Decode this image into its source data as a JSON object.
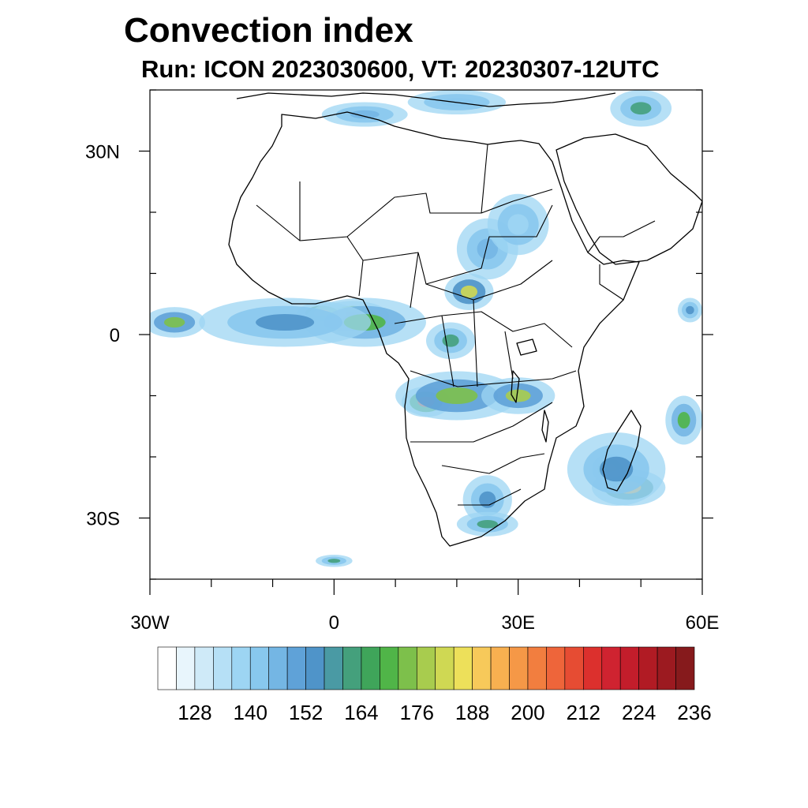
{
  "title": "Convection index",
  "subtitle": "Run: ICON 2023030600,  VT: 20230307-12UTC",
  "map": {
    "lon_range": [
      -30,
      60
    ],
    "lat_range": [
      -40,
      40
    ],
    "lat_ticks": [
      {
        "value": 30,
        "label": "30N"
      },
      {
        "value": 0,
        "label": "0"
      },
      {
        "value": -30,
        "label": "30S"
      }
    ],
    "lon_ticks": [
      {
        "value": -30,
        "label": "30W"
      },
      {
        "value": 0,
        "label": "0"
      },
      {
        "value": 30,
        "label": "30E"
      },
      {
        "value": 60,
        "label": "60E"
      }
    ],
    "minor_lat_ticks": [
      40,
      20,
      10,
      -10,
      -20,
      -40
    ],
    "minor_lon_ticks": [
      -20,
      -10,
      10,
      20,
      40,
      50
    ]
  },
  "colorbar": {
    "colors": [
      "#ffffff",
      "#e8f5fc",
      "#cfeaf8",
      "#b6e0f6",
      "#9dd5f3",
      "#88c8ee",
      "#74b6e4",
      "#5fa2d8",
      "#4f94c9",
      "#4a9aa4",
      "#44a07c",
      "#3fa55a",
      "#50b548",
      "#7dc04b",
      "#a8cc4e",
      "#cfd853",
      "#ede05a",
      "#f7c95a",
      "#f8b050",
      "#f59847",
      "#f27e3f",
      "#ee653a",
      "#e64c33",
      "#dc302d",
      "#cf2330",
      "#c31d2b",
      "#b11b24",
      "#9c1a20",
      "#861a1c"
    ],
    "labels": [
      {
        "value": 128,
        "after_index": 2
      },
      {
        "value": 140,
        "after_index": 5
      },
      {
        "value": 152,
        "after_index": 8
      },
      {
        "value": 164,
        "after_index": 11
      },
      {
        "value": 176,
        "after_index": 14
      },
      {
        "value": 188,
        "after_index": 17
      },
      {
        "value": 200,
        "after_index": 20
      },
      {
        "value": 212,
        "after_index": 23
      },
      {
        "value": 224,
        "after_index": 26
      },
      {
        "value": 236,
        "after_index": 29
      }
    ]
  },
  "convection_regions": [
    {
      "lon": 3,
      "lat": 3,
      "rlon": 6,
      "rlat": 2.5,
      "level": 26
    },
    {
      "lon": -2,
      "lat": 3.5,
      "rlon": 4,
      "rlat": 1.8,
      "level": 20
    },
    {
      "lon": 5,
      "lat": 2,
      "rlon": 10,
      "rlat": 4,
      "level": 12
    },
    {
      "lon": -8,
      "lat": 2,
      "rlon": 14,
      "rlat": 4,
      "level": 8
    },
    {
      "lon": -26,
      "lat": 2,
      "rlon": 5,
      "rlat": 2.5,
      "level": 13
    },
    {
      "lon": 15,
      "lat": -11,
      "rlon": 4,
      "rlat": 2.5,
      "level": 22
    },
    {
      "lon": 20,
      "lat": -10,
      "rlon": 10,
      "rlat": 4,
      "level": 13
    },
    {
      "lon": 30,
      "lat": -10,
      "rlon": 6,
      "rlat": 3,
      "level": 14
    },
    {
      "lon": 45,
      "lat": -22,
      "rlon": 3,
      "rlat": 2.5,
      "level": 24
    },
    {
      "lon": 48,
      "lat": -25,
      "rlon": 6,
      "rlat": 3,
      "level": 18
    },
    {
      "lon": 46,
      "lat": -22,
      "rlon": 8,
      "rlat": 6,
      "level": 8
    },
    {
      "lon": 57,
      "lat": -14,
      "rlon": 3,
      "rlat": 4,
      "level": 12
    },
    {
      "lon": 22,
      "lat": 7,
      "rlon": 4,
      "rlat": 3,
      "level": 15
    },
    {
      "lon": 25,
      "lat": 14,
      "rlon": 5,
      "rlat": 5,
      "level": 6
    },
    {
      "lon": 30,
      "lat": 18,
      "rlon": 5,
      "rlat": 5,
      "level": 4
    },
    {
      "lon": 25,
      "lat": -27,
      "rlon": 4,
      "rlat": 4,
      "level": 8
    },
    {
      "lon": 25,
      "lat": -31,
      "rlon": 5,
      "rlat": 2,
      "level": 10
    },
    {
      "lon": 5,
      "lat": 36,
      "rlon": 7,
      "rlat": 2,
      "level": 6
    },
    {
      "lon": 20,
      "lat": 38,
      "rlon": 8,
      "rlat": 2,
      "level": 5
    },
    {
      "lon": 50,
      "lat": 37,
      "rlon": 5,
      "rlat": 3,
      "level": 10
    },
    {
      "lon": 58,
      "lat": 4,
      "rlon": 2,
      "rlat": 2,
      "level": 8
    },
    {
      "lon": 0,
      "lat": -37,
      "rlon": 3,
      "rlat": 1,
      "level": 10
    },
    {
      "lon": 19,
      "lat": -1,
      "rlon": 4,
      "rlat": 3,
      "level": 10
    }
  ]
}
